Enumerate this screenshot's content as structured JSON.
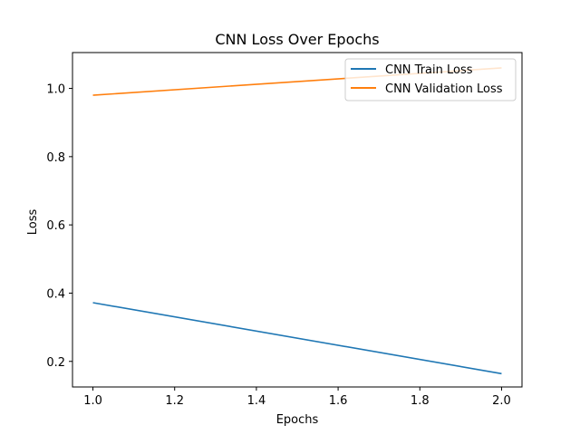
{
  "chart_data": {
    "type": "line",
    "title": "CNN Loss Over Epochs",
    "xlabel": "Epochs",
    "ylabel": "Loss",
    "xlim": [
      0.95,
      2.05
    ],
    "ylim": [
      0.125,
      1.105
    ],
    "xticks": [
      1.0,
      1.2,
      1.4,
      1.6,
      1.8,
      2.0
    ],
    "xtick_labels": [
      "1.0",
      "1.2",
      "1.4",
      "1.6",
      "1.8",
      "2.0"
    ],
    "yticks": [
      0.2,
      0.4,
      0.6,
      0.8,
      1.0
    ],
    "ytick_labels": [
      "0.2",
      "0.4",
      "0.6",
      "0.8",
      "1.0"
    ],
    "grid": false,
    "legend_position": "top-right",
    "x": [
      1.0,
      2.0
    ],
    "series": [
      {
        "name": "CNN Train Loss",
        "values": [
          0.372,
          0.164
        ],
        "color": "#1f77b4"
      },
      {
        "name": "CNN Validation Loss",
        "values": [
          0.98,
          1.06
        ],
        "color": "#ff7f0e"
      }
    ]
  }
}
